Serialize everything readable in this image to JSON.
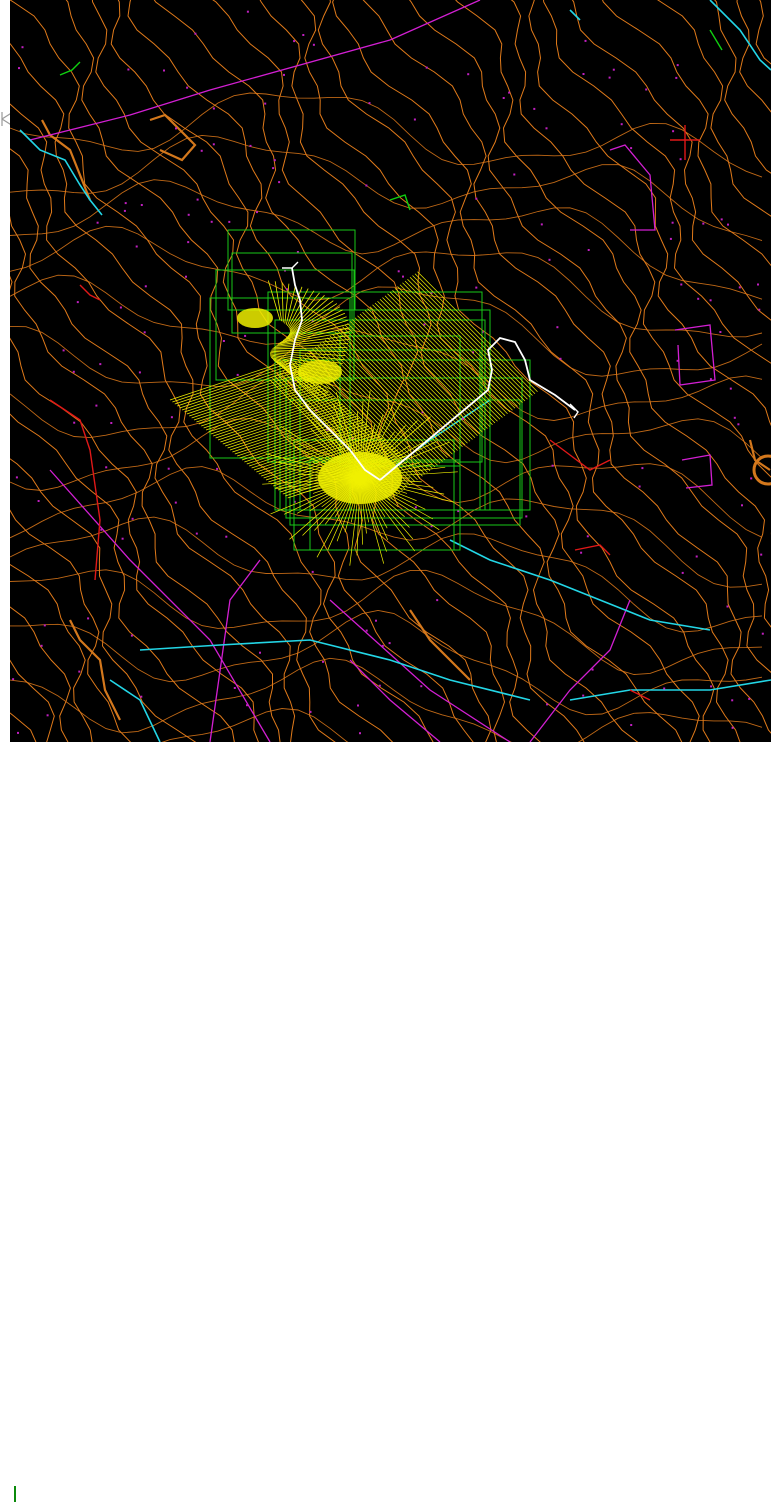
{
  "viewport": {
    "background": "#000000",
    "layers": [
      {
        "name": "contours",
        "color": "#e07a1a"
      },
      {
        "name": "index-contours",
        "color": "#d4781c"
      },
      {
        "name": "streams",
        "color": "#23d6e6"
      },
      {
        "name": "boundaries",
        "color": "#d21fd2"
      },
      {
        "name": "points",
        "color": "#c020c0"
      },
      {
        "name": "red-features",
        "color": "#e01818"
      },
      {
        "name": "green-features",
        "color": "#10d010"
      },
      {
        "name": "frames",
        "color": "#18c818"
      },
      {
        "name": "profile-lines",
        "color": "#f0f000"
      },
      {
        "name": "alignment",
        "color": "#ffffff"
      }
    ]
  },
  "icons": {
    "ucs": "ucs-icon",
    "cursor": "command-cursor-icon"
  }
}
